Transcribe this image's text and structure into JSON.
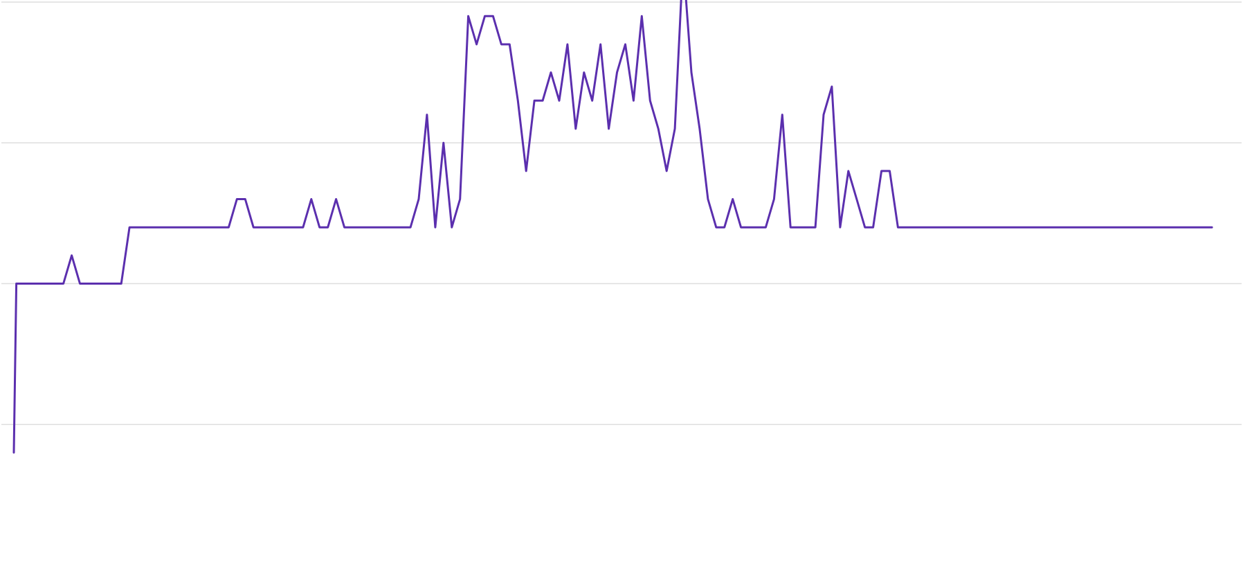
{
  "colors": {
    "line": "#5b2fae",
    "grid": "#dedede",
    "background": "#ffffff"
  },
  "chart_data": {
    "type": "line",
    "title": "",
    "xlabel": "",
    "ylabel": "",
    "grid": true,
    "legend": "none",
    "gridlines": [
      4,
      3,
      2,
      1
    ],
    "ylim": [
      0,
      4
    ],
    "xlim": [
      0,
      147
    ],
    "x": [
      0,
      0.3,
      6,
      7,
      8,
      13,
      14,
      15,
      26,
      27,
      28,
      29,
      35,
      36,
      37,
      38,
      39,
      40,
      41,
      42,
      48,
      49,
      50,
      51,
      52,
      53,
      54,
      55,
      56,
      57,
      58,
      59,
      60,
      61,
      62,
      63,
      64,
      65,
      66,
      67,
      68,
      69,
      70,
      71,
      72,
      73,
      74,
      75,
      76,
      77,
      78,
      79,
      80,
      81,
      82,
      83,
      84,
      85,
      86,
      87,
      88,
      89,
      90,
      91,
      92,
      93,
      94,
      95,
      96,
      97,
      98,
      99,
      100,
      101,
      102,
      103,
      104,
      105,
      106,
      107,
      108,
      109,
      110,
      145
    ],
    "series": [
      {
        "values": [
          0.8,
          2.0,
          2.0,
          2.2,
          2.0,
          2.0,
          2.4,
          2.4,
          2.4,
          2.6,
          2.6,
          2.4,
          2.4,
          2.6,
          2.4,
          2.4,
          2.6,
          2.4,
          2.4,
          2.4,
          2.4,
          2.6,
          3.2,
          2.4,
          3.0,
          2.4,
          2.6,
          3.9,
          3.7,
          3.9,
          3.9,
          3.7,
          3.7,
          3.3,
          2.8,
          3.3,
          3.3,
          3.5,
          3.3,
          3.7,
          3.1,
          3.5,
          3.3,
          3.7,
          3.1,
          3.5,
          3.7,
          3.3,
          3.9,
          3.3,
          3.1,
          2.8,
          3.1,
          4.3,
          3.5,
          3.1,
          2.6,
          2.4,
          2.4,
          2.6,
          2.4,
          2.4,
          2.4,
          2.4,
          2.6,
          3.2,
          2.4,
          2.4,
          2.4,
          2.4,
          3.2,
          3.4,
          2.4,
          2.8,
          2.6,
          2.4,
          2.4,
          2.8,
          2.8,
          2.4,
          2.4,
          2.4,
          2.4,
          2.4
        ]
      }
    ]
  }
}
